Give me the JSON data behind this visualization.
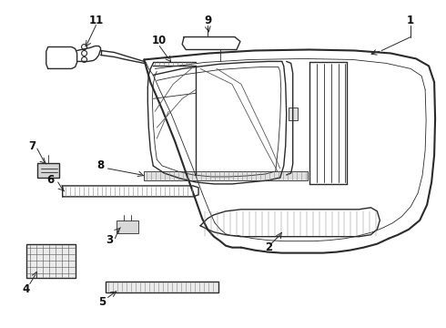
{
  "bg_color": "#ffffff",
  "line_color": "#2a2a2a",
  "lw_main": 1.5,
  "lw_med": 1.0,
  "lw_thin": 0.6,
  "figsize": [
    4.9,
    3.6
  ],
  "dpi": 100
}
